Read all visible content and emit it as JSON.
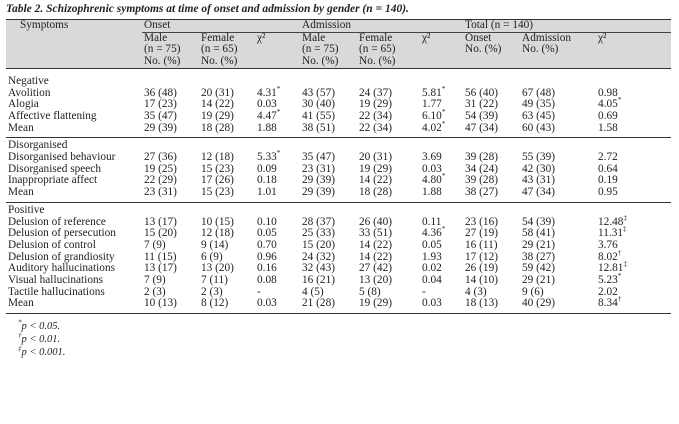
{
  "caption": "Table 2. Schizophrenic symptoms at time of onset and admission by gender (n = 140).",
  "header": {
    "symptoms": "Symptoms",
    "groups": [
      "Onset",
      "Admission",
      "Total (n = 140)"
    ],
    "sub": [
      [
        "Male",
        "(n = 75)",
        "No. (%)"
      ],
      [
        "Female",
        "(n = 65)",
        "No. (%)"
      ],
      [
        "χ²",
        "",
        ""
      ],
      [
        "Male",
        "(n = 75)",
        "No. (%)"
      ],
      [
        "Female",
        "(n = 65)",
        "No. (%)"
      ],
      [
        "χ²",
        "",
        ""
      ],
      [
        "Onset",
        "No. (%)",
        ""
      ],
      [
        "Admission",
        "No. (%)",
        ""
      ],
      [
        "χ²",
        "",
        ""
      ]
    ]
  },
  "sections": [
    {
      "title": "Negative",
      "rows": [
        {
          "label": "Avolition",
          "cells": [
            "36 (48)",
            "20 (31)",
            "4.31",
            "43 (57)",
            "24 (37)",
            "5.81",
            "56 (40)",
            "67 (48)",
            "0.98"
          ],
          "sups": [
            "",
            "",
            "*",
            "",
            "",
            "*",
            "",
            "",
            ""
          ]
        },
        {
          "label": "Alogia",
          "cells": [
            "17 (23)",
            "14 (22)",
            "0.03",
            "30 (40)",
            "19 (29)",
            "1.77",
            "31 (22)",
            "49 (35)",
            "4.05"
          ],
          "sups": [
            "",
            "",
            "",
            "",
            "",
            "",
            "",
            "",
            "*"
          ]
        },
        {
          "label": "Affective flattening",
          "cells": [
            "35 (47)",
            "19 (29)",
            "4.47",
            "41 (55)",
            "22 (34)",
            "6.10",
            "54 (39)",
            "63 (45)",
            "0.69"
          ],
          "sups": [
            "",
            "",
            "*",
            "",
            "",
            "*",
            "",
            "",
            ""
          ]
        },
        {
          "label": "Mean",
          "cells": [
            "29 (39)",
            "18 (28)",
            "1.88",
            "38 (51)",
            "22 (34)",
            "4.02",
            "47 (34)",
            "60 (43)",
            "1.58"
          ],
          "sups": [
            "",
            "",
            "",
            "",
            "",
            "*",
            "",
            "",
            ""
          ]
        }
      ]
    },
    {
      "title": "Disorganised",
      "rows": [
        {
          "label": "Disorganised behaviour",
          "cells": [
            "27 (36)",
            "12 (18)",
            "5.33",
            "35 (47)",
            "20 (31)",
            "3.69",
            "39 (28)",
            "55 (39)",
            "2.72"
          ],
          "sups": [
            "",
            "",
            "*",
            "",
            "",
            "",
            "",
            "",
            ""
          ]
        },
        {
          "label": "Disorganised speech",
          "cells": [
            "19 (25)",
            "15 (23)",
            "0.09",
            "23 (31)",
            "19 (29)",
            "0.03",
            "34 (24)",
            "42 (30)",
            "0.64"
          ],
          "sups": [
            "",
            "",
            "",
            "",
            "",
            "",
            "",
            "",
            ""
          ]
        },
        {
          "label": "Inappropriate affect",
          "cells": [
            "22 (29)",
            "17 (26)",
            "0.18",
            "29 (39)",
            "14 (22)",
            "4.80",
            "39 (28)",
            "43 (31)",
            "0.19"
          ],
          "sups": [
            "",
            "",
            "",
            "",
            "",
            "*",
            "",
            "",
            ""
          ]
        },
        {
          "label": "Mean",
          "cells": [
            "23 (31)",
            "15 (23)",
            "1.01",
            "29 (39)",
            "18 (28)",
            "1.88",
            "38 (27)",
            "47 (34)",
            "0.95"
          ],
          "sups": [
            "",
            "",
            "",
            "",
            "",
            "",
            "",
            "",
            ""
          ]
        }
      ]
    },
    {
      "title": "Positive",
      "rows": [
        {
          "label": "Delusion of reference",
          "cells": [
            "13 (17)",
            "10 (15)",
            "0.10",
            "28 (37)",
            "26 (40)",
            "0.11",
            "23 (16)",
            "54 (39)",
            "12.48"
          ],
          "sups": [
            "",
            "",
            "",
            "",
            "",
            "",
            "",
            "",
            "‡"
          ]
        },
        {
          "label": "Delusion of persecution",
          "cells": [
            "15 (20)",
            "12 (18)",
            "0.05",
            "25 (33)",
            "33 (51)",
            "4.36",
            "27 (19)",
            "58 (41)",
            "11.31"
          ],
          "sups": [
            "",
            "",
            "",
            "",
            "",
            "*",
            "",
            "",
            "‡"
          ]
        },
        {
          "label": "Delusion of control",
          "cells": [
            "7 (9)",
            "9 (14)",
            "0.70",
            "15 (20)",
            "14 (22)",
            "0.05",
            "16 (11)",
            "29 (21)",
            "3.76"
          ],
          "sups": [
            "",
            "",
            "",
            "",
            "",
            "",
            "",
            "",
            ""
          ]
        },
        {
          "label": "Delusion of grandiosity",
          "cells": [
            "11 (15)",
            "6 (9)",
            "0.96",
            "24 (32)",
            "14 (22)",
            "1.93",
            "17 (12)",
            "38 (27)",
            "8.02"
          ],
          "sups": [
            "",
            "",
            "",
            "",
            "",
            "",
            "",
            "",
            "†"
          ]
        },
        {
          "label": "Auditory hallucinations",
          "cells": [
            "13 (17)",
            "13 (20)",
            "0.16",
            "32 (43)",
            "27 (42)",
            "0.02",
            "26 (19)",
            "59 (42)",
            "12.81"
          ],
          "sups": [
            "",
            "",
            "",
            "",
            "",
            "",
            "",
            "",
            "‡"
          ]
        },
        {
          "label": "Visual hallucinations",
          "cells": [
            "7 (9)",
            "7 (11)",
            "0.08",
            "16 (21)",
            "13 (20)",
            "0.04",
            "14 (10)",
            "29 (21)",
            "5.23"
          ],
          "sups": [
            "",
            "",
            "",
            "",
            "",
            "",
            "",
            "",
            "*"
          ]
        },
        {
          "label": "Tactile hallucinations",
          "cells": [
            "2 (3)",
            "2 (3)",
            "-",
            "4 (5)",
            "5 (8)",
            "-",
            "4 (3)",
            "9 (6)",
            "2.02"
          ],
          "sups": [
            "",
            "",
            "",
            "",
            "",
            "",
            "",
            "",
            ""
          ]
        },
        {
          "label": "Mean",
          "cells": [
            "10 (13)",
            "8 (12)",
            "0.03",
            "21 (28)",
            "19 (29)",
            "0.03",
            "18 (13)",
            "40 (29)",
            "8.34"
          ],
          "sups": [
            "",
            "",
            "",
            "",
            "",
            "",
            "",
            "",
            "†"
          ]
        }
      ]
    }
  ],
  "footnotes": [
    {
      "mark": "*",
      "text": "p < 0.05."
    },
    {
      "mark": "†",
      "text": "p < 0.01."
    },
    {
      "mark": "‡",
      "text": "p < 0.001."
    }
  ]
}
